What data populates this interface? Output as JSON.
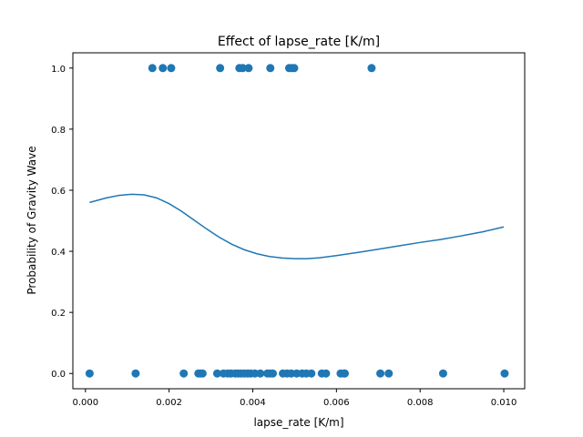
{
  "chart_data": {
    "type": "scatter",
    "title": "Effect of lapse_rate [K/m]",
    "xlabel": "lapse_rate [K/m]",
    "ylabel": "Probability of Gravity Wave",
    "xlim": [
      -0.0003,
      0.0105
    ],
    "ylim": [
      -0.05,
      1.05
    ],
    "xticks": [
      0.0,
      0.002,
      0.004,
      0.006,
      0.008,
      0.01
    ],
    "xtick_labels": [
      "0.000",
      "0.002",
      "0.004",
      "0.006",
      "0.008",
      "0.010"
    ],
    "yticks": [
      0.0,
      0.2,
      0.4,
      0.6,
      0.8,
      1.0
    ],
    "ytick_labels": [
      "0.0",
      "0.2",
      "0.4",
      "0.6",
      "0.8",
      "1.0"
    ],
    "grid": false,
    "colors": {
      "series": "#1f77b4",
      "axes": "#000000",
      "background": "#ffffff"
    },
    "series": [
      {
        "kind": "scatter",
        "points": [
          [
            0.0016,
            1
          ],
          [
            0.00185,
            1
          ],
          [
            0.00205,
            1
          ],
          [
            0.00322,
            1
          ],
          [
            0.00368,
            1
          ],
          [
            0.00376,
            1
          ],
          [
            0.0039,
            1
          ],
          [
            0.00442,
            1
          ],
          [
            0.00487,
            1
          ],
          [
            0.00493,
            1
          ],
          [
            0.00499,
            1
          ],
          [
            0.00684,
            1
          ],
          [
            0.0001,
            0
          ],
          [
            0.0012,
            0
          ],
          [
            0.00235,
            0
          ],
          [
            0.0027,
            0
          ],
          [
            0.00275,
            0
          ],
          [
            0.0028,
            0
          ],
          [
            0.00315,
            0
          ],
          [
            0.0033,
            0
          ],
          [
            0.0034,
            0
          ],
          [
            0.00348,
            0
          ],
          [
            0.00358,
            0
          ],
          [
            0.00365,
            0
          ],
          [
            0.00372,
            0
          ],
          [
            0.0038,
            0
          ],
          [
            0.00388,
            0
          ],
          [
            0.00395,
            0
          ],
          [
            0.00405,
            0
          ],
          [
            0.00418,
            0
          ],
          [
            0.00435,
            0
          ],
          [
            0.00442,
            0
          ],
          [
            0.00448,
            0
          ],
          [
            0.00472,
            0
          ],
          [
            0.00482,
            0
          ],
          [
            0.00492,
            0
          ],
          [
            0.00505,
            0
          ],
          [
            0.00518,
            0
          ],
          [
            0.00528,
            0
          ],
          [
            0.0054,
            0
          ],
          [
            0.00565,
            0
          ],
          [
            0.00575,
            0
          ],
          [
            0.0061,
            0
          ],
          [
            0.00618,
            0
          ],
          [
            0.0062,
            0
          ],
          [
            0.00705,
            0
          ],
          [
            0.00725,
            0
          ],
          [
            0.00855,
            0
          ],
          [
            0.01002,
            0
          ]
        ]
      },
      {
        "kind": "line",
        "points": [
          [
            0.0001,
            0.56
          ],
          [
            0.0005,
            0.575
          ],
          [
            0.0008,
            0.583
          ],
          [
            0.0011,
            0.587
          ],
          [
            0.0014,
            0.585
          ],
          [
            0.0017,
            0.575
          ],
          [
            0.002,
            0.556
          ],
          [
            0.0023,
            0.531
          ],
          [
            0.0026,
            0.502
          ],
          [
            0.0029,
            0.473
          ],
          [
            0.0032,
            0.446
          ],
          [
            0.0035,
            0.423
          ],
          [
            0.0038,
            0.405
          ],
          [
            0.0041,
            0.392
          ],
          [
            0.0044,
            0.383
          ],
          [
            0.0047,
            0.378
          ],
          [
            0.005,
            0.376
          ],
          [
            0.0053,
            0.376
          ],
          [
            0.0056,
            0.379
          ],
          [
            0.006,
            0.386
          ],
          [
            0.0065,
            0.396
          ],
          [
            0.007,
            0.407
          ],
          [
            0.0075,
            0.418
          ],
          [
            0.008,
            0.429
          ],
          [
            0.0085,
            0.439
          ],
          [
            0.009,
            0.451
          ],
          [
            0.0095,
            0.464
          ],
          [
            0.01,
            0.48
          ]
        ]
      }
    ]
  }
}
